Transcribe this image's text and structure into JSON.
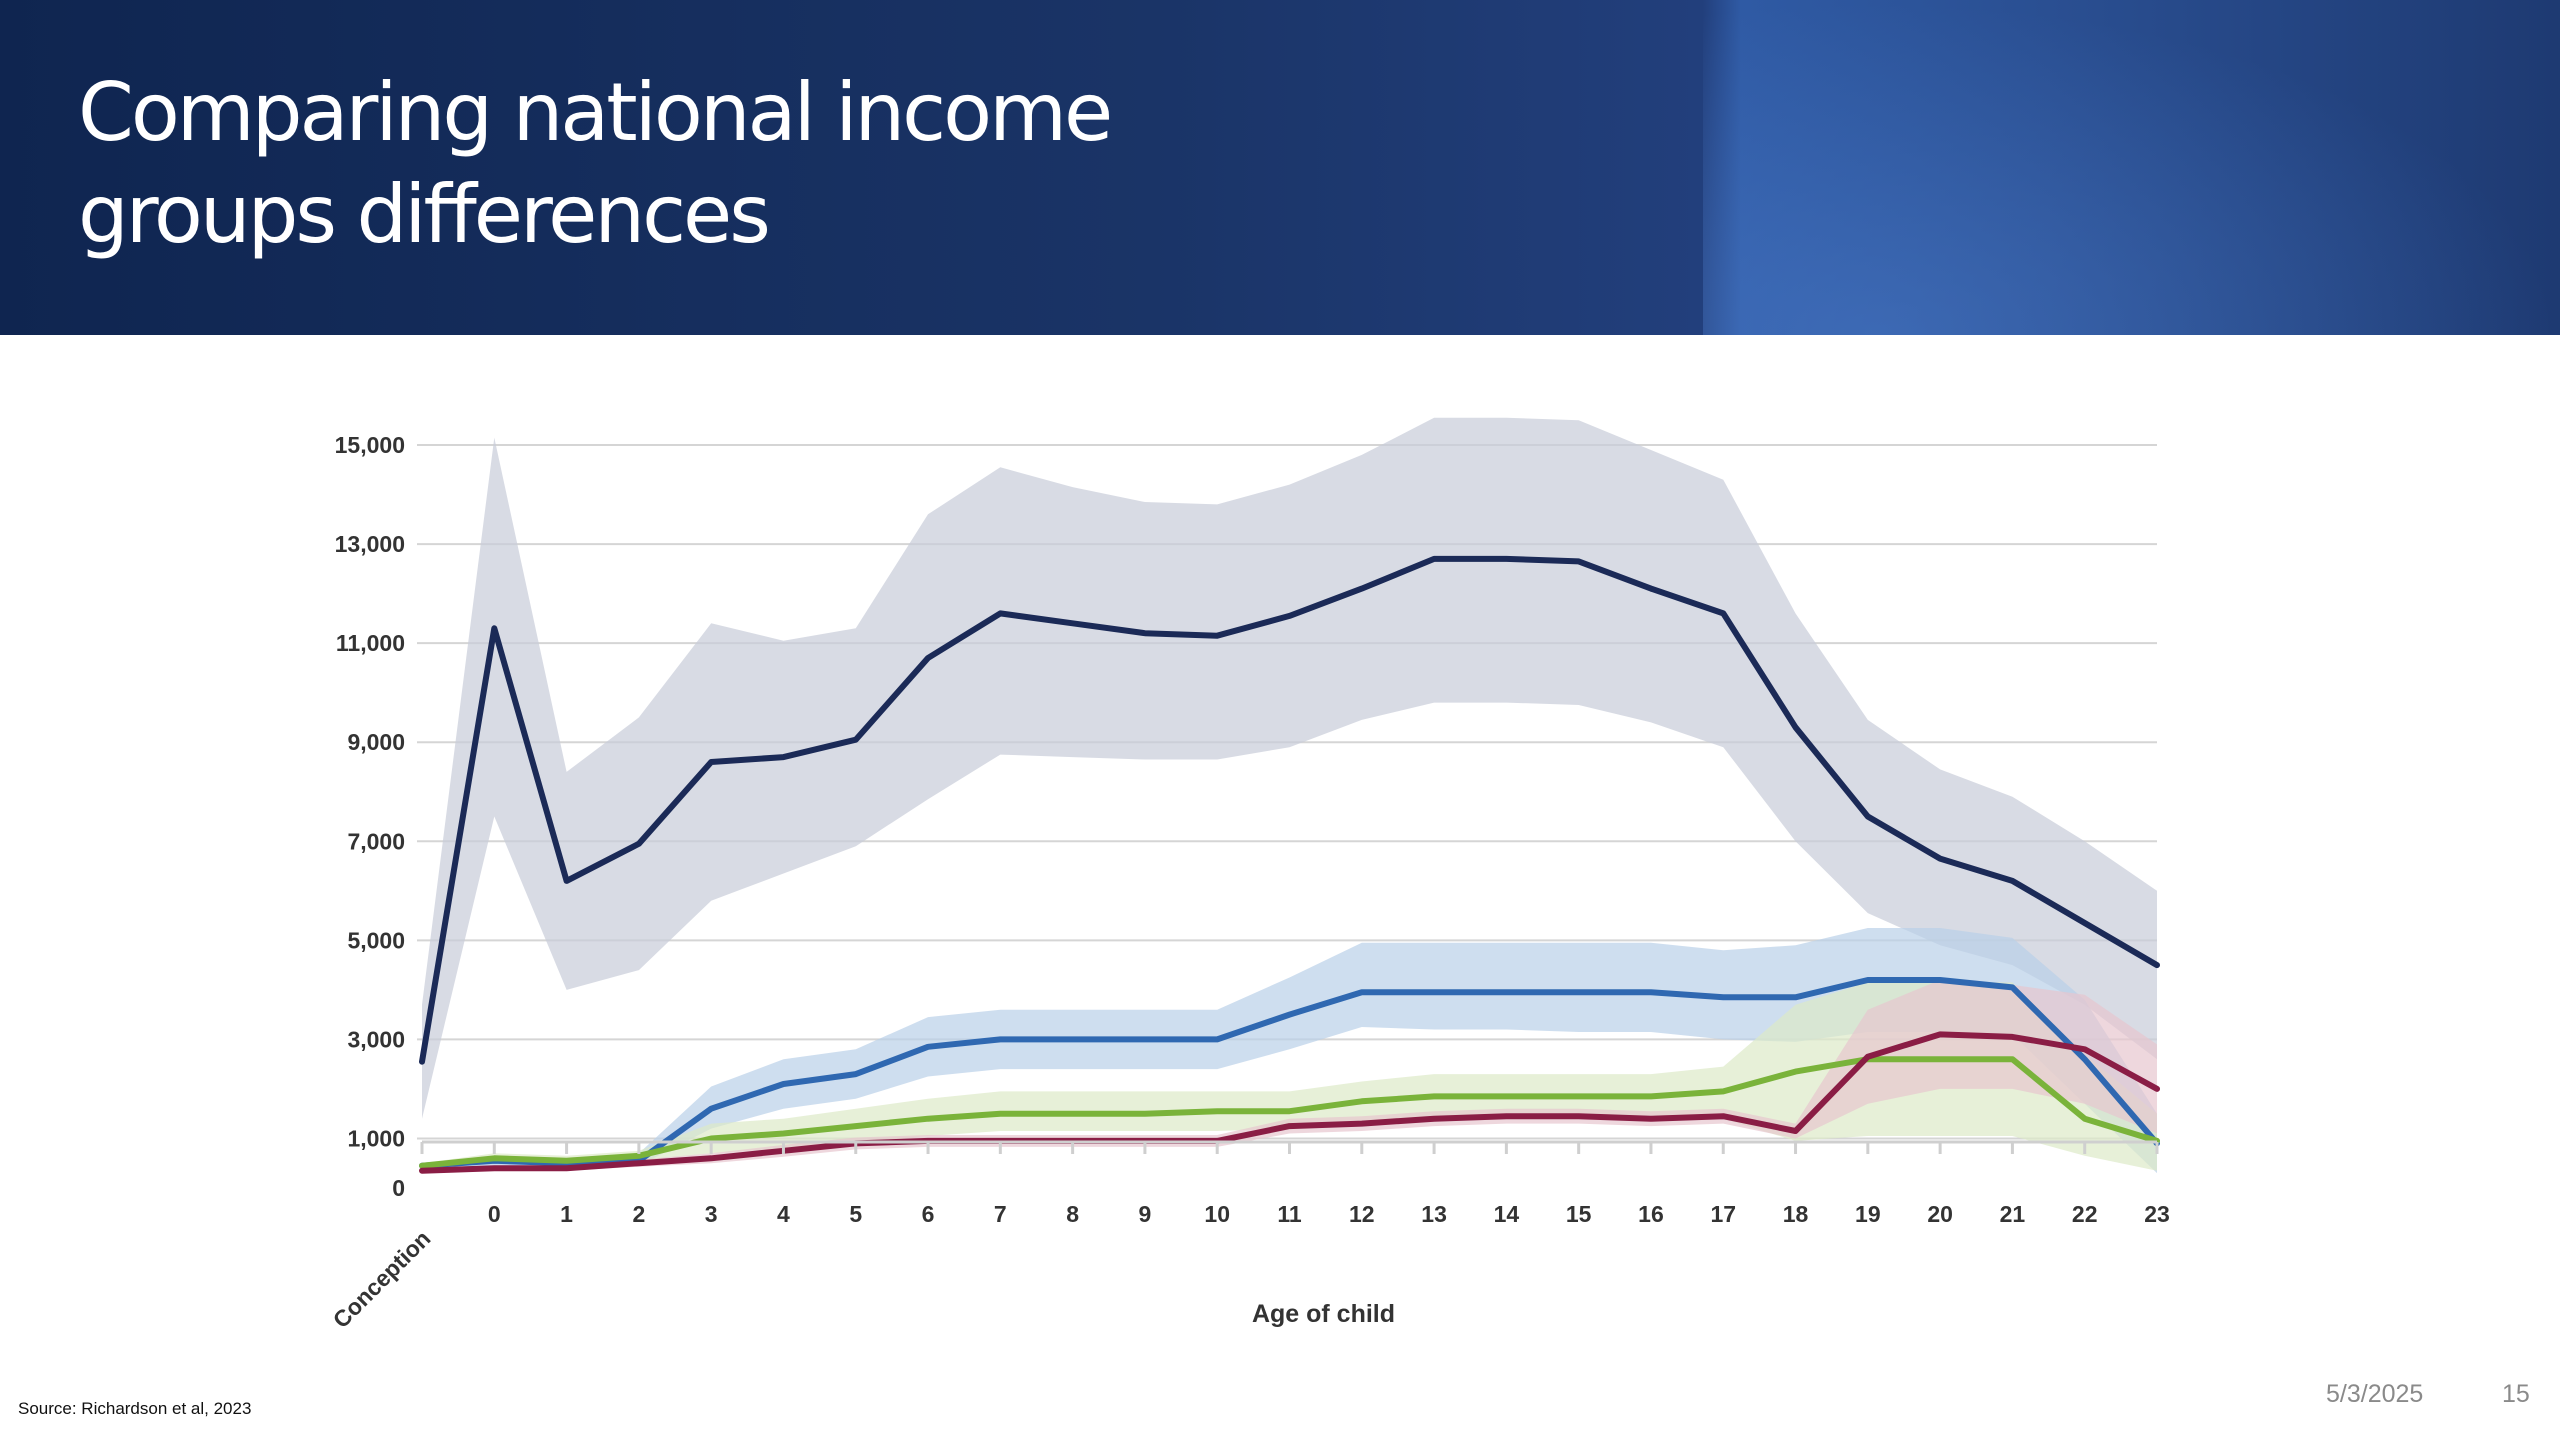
{
  "slide": {
    "title_line1": "Comparing national income",
    "title_line2": "groups differences",
    "source": "Source: Richardson et al, 2023",
    "date": "5/3/2025",
    "page_number": "15"
  },
  "colors": {
    "header_dark": "#0f2550",
    "header_light": "#2f5aa4",
    "series_1": "#1b2a57",
    "series_2": "#2f68b1",
    "series_3": "#7ab33a",
    "series_4": "#8a1d45"
  },
  "chart_data": {
    "type": "line",
    "title": "",
    "xlabel": "Age of child",
    "ylabel": "",
    "ylim": [
      0,
      15000
    ],
    "y_ticks": [
      0,
      1000,
      3000,
      5000,
      7000,
      9000,
      11000,
      13000,
      15000
    ],
    "y_tick_labels": [
      "0",
      "1,000",
      "3,000",
      "5,000",
      "7,000",
      "9,000",
      "11,000",
      "13,000",
      "15,000"
    ],
    "categories": [
      "Conception",
      "0",
      "1",
      "2",
      "3",
      "4",
      "5",
      "6",
      "7",
      "8",
      "9",
      "10",
      "11",
      "12",
      "13",
      "14",
      "15",
      "16",
      "17",
      "18",
      "19",
      "20",
      "21",
      "22",
      "23"
    ],
    "grid": true,
    "legend": "none",
    "series": [
      {
        "color": "#1b2a57",
        "band_color": "#c8ccd8",
        "values": [
          2550,
          11300,
          6200,
          6950,
          8600,
          8700,
          9050,
          10700,
          11600,
          11400,
          11200,
          11150,
          11550,
          12100,
          12700,
          12700,
          12650,
          12100,
          11600,
          9300,
          7500,
          6650,
          6200,
          5350,
          4500
        ],
        "lower": [
          1400,
          7500,
          4000,
          4400,
          5800,
          6350,
          6900,
          7850,
          8750,
          8700,
          8650,
          8650,
          8900,
          9450,
          9800,
          9800,
          9750,
          9400,
          8900,
          7000,
          5550,
          4900,
          4500,
          3700,
          2600
        ],
        "upper": [
          3700,
          15150,
          8400,
          9500,
          11400,
          11050,
          11300,
          13600,
          14550,
          14150,
          13850,
          13800,
          14200,
          14800,
          15550,
          15550,
          15500,
          14900,
          14300,
          11600,
          9450,
          8450,
          7900,
          7000,
          6000
        ]
      },
      {
        "color": "#2f68b1",
        "band_color": "#b9d0e8",
        "values": [
          450,
          550,
          500,
          550,
          1600,
          2100,
          2300,
          2850,
          3000,
          3000,
          3000,
          3000,
          3500,
          3950,
          3950,
          3950,
          3950,
          3950,
          3850,
          3850,
          4200,
          4200,
          4050,
          2600,
          900
        ],
        "lower": [
          400,
          450,
          420,
          450,
          1200,
          1600,
          1800,
          2250,
          2400,
          2400,
          2400,
          2400,
          2800,
          3250,
          3200,
          3200,
          3150,
          3150,
          3000,
          2950,
          3150,
          3150,
          3100,
          1700,
          300
        ],
        "upper": [
          500,
          650,
          600,
          700,
          2050,
          2600,
          2800,
          3450,
          3600,
          3600,
          3600,
          3600,
          4250,
          4950,
          4950,
          4950,
          4950,
          4950,
          4800,
          4900,
          5250,
          5250,
          5050,
          3800,
          1500
        ]
      },
      {
        "color": "#7ab33a",
        "band_color": "#dde9c8",
        "values": [
          450,
          600,
          550,
          650,
          1000,
          1100,
          1250,
          1400,
          1500,
          1500,
          1500,
          1550,
          1550,
          1750,
          1850,
          1850,
          1850,
          1850,
          1950,
          2350,
          2600,
          2600,
          2600,
          1400,
          950
        ],
        "lower": [
          400,
          500,
          480,
          550,
          700,
          800,
          900,
          1050,
          1150,
          1150,
          1150,
          1150,
          1200,
          1350,
          1400,
          1400,
          1400,
          1400,
          1400,
          950,
          1050,
          1050,
          1050,
          650,
          350
        ],
        "upper": [
          500,
          700,
          650,
          750,
          1300,
          1400,
          1600,
          1800,
          1950,
          1950,
          1950,
          1950,
          1950,
          2150,
          2300,
          2300,
          2300,
          2300,
          2450,
          3700,
          4150,
          4150,
          4150,
          2700,
          1500
        ]
      },
      {
        "color": "#8a1d45",
        "band_color": "#e7c6cf",
        "values": [
          350,
          400,
          400,
          500,
          600,
          750,
          900,
          950,
          950,
          950,
          950,
          950,
          1250,
          1300,
          1400,
          1450,
          1450,
          1400,
          1450,
          1150,
          2650,
          3100,
          3050,
          2800,
          2000
        ],
        "lower": [
          300,
          350,
          350,
          430,
          500,
          630,
          780,
          830,
          830,
          830,
          830,
          830,
          1100,
          1150,
          1250,
          1300,
          1300,
          1250,
          1300,
          1000,
          1700,
          2000,
          2000,
          1700,
          1100
        ],
        "upper": [
          400,
          450,
          450,
          570,
          700,
          870,
          1020,
          1070,
          1070,
          1070,
          1070,
          1070,
          1400,
          1450,
          1550,
          1600,
          1600,
          1550,
          1600,
          1300,
          3600,
          4200,
          4100,
          3900,
          2900
        ]
      }
    ]
  }
}
